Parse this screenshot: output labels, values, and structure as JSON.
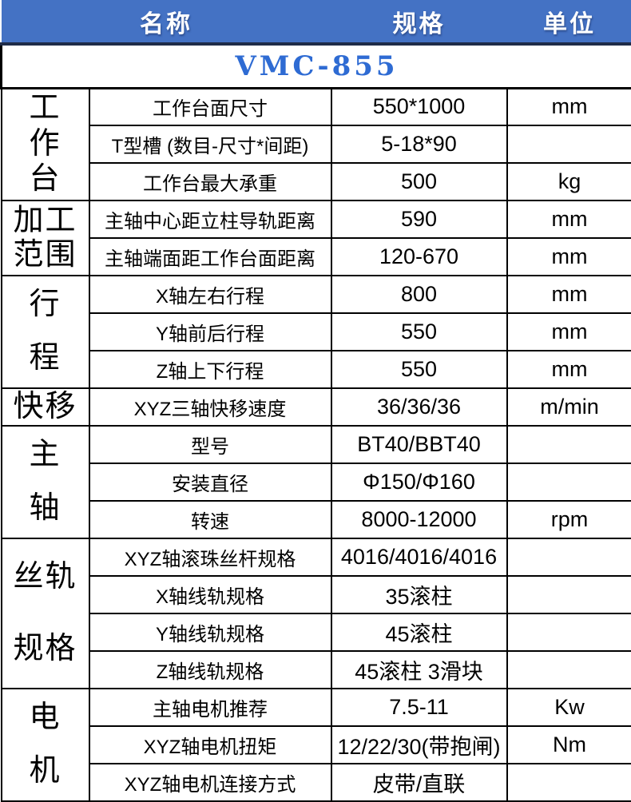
{
  "header": {
    "name": "名称",
    "spec": "规格",
    "unit": "单位"
  },
  "model": "VMC-855",
  "colors": {
    "header_bg": "#4472c4",
    "header_text": "#ffffff",
    "header_divider": "#1f2c48",
    "model_text": "#2e6bd3",
    "border": "#000000"
  },
  "groups": [
    {
      "category": "工作台",
      "label_lines": [
        "工",
        "作",
        "台"
      ],
      "rows": [
        {
          "name": "工作台面尺寸",
          "spec": "550*1000",
          "unit": "mm"
        },
        {
          "name": "T型槽 (数目-尺寸*间距)",
          "spec": "5-18*90",
          "unit": ""
        },
        {
          "name": "工作台最大承重",
          "spec": "500",
          "unit": "kg"
        }
      ]
    },
    {
      "category": "加工范围",
      "label_lines": [
        "加工",
        "范围"
      ],
      "rows": [
        {
          "name": "主轴中心距立柱导轨距离",
          "spec": "590",
          "unit": "mm"
        },
        {
          "name": "主轴端面距工作台面距离",
          "spec": "120-670",
          "unit": "mm"
        }
      ]
    },
    {
      "category": "行程",
      "label_lines": [
        "行",
        "程"
      ],
      "rows": [
        {
          "name": "X轴左右行程",
          "spec": "800",
          "unit": "mm"
        },
        {
          "name": "Y轴前后行程",
          "spec": "550",
          "unit": "mm"
        },
        {
          "name": "Z轴上下行程",
          "spec": "550",
          "unit": "mm"
        }
      ]
    },
    {
      "category": "快移",
      "label_lines": [
        "快移"
      ],
      "rows": [
        {
          "name": "XYZ三轴快移速度",
          "spec": "36/36/36",
          "unit": "m/min"
        }
      ]
    },
    {
      "category": "主轴",
      "label_lines": [
        "主",
        "轴"
      ],
      "rows": [
        {
          "name": "型号",
          "spec": "BT40/BBT40",
          "unit": ""
        },
        {
          "name": "安装直径",
          "spec": "Φ150/Φ160",
          "unit": ""
        },
        {
          "name": "转速",
          "spec": "8000-12000",
          "unit": "rpm"
        }
      ]
    },
    {
      "category": "丝轨规格",
      "label_lines": [
        "丝轨",
        "规格"
      ],
      "rows": [
        {
          "name": "XYZ轴滚珠丝杆规格",
          "spec": "4016/4016/4016",
          "unit": ""
        },
        {
          "name": "X轴线轨规格",
          "spec": "35滚柱",
          "unit": ""
        },
        {
          "name": "Y轴线轨规格",
          "spec": "45滚柱",
          "unit": ""
        },
        {
          "name": "Z轴线轨规格",
          "spec": "45滚柱 3滑块",
          "unit": ""
        }
      ]
    },
    {
      "category": "电机",
      "label_lines": [
        "电",
        "机"
      ],
      "rows": [
        {
          "name": "主轴电机推荐",
          "spec": "7.5-11",
          "unit": "Kw"
        },
        {
          "name": "XYZ轴电机扭矩",
          "spec": "12/22/30(带抱闸)",
          "unit": "Nm"
        },
        {
          "name": "XYZ轴电机连接方式",
          "spec": "皮带/直联",
          "unit": ""
        }
      ]
    }
  ]
}
